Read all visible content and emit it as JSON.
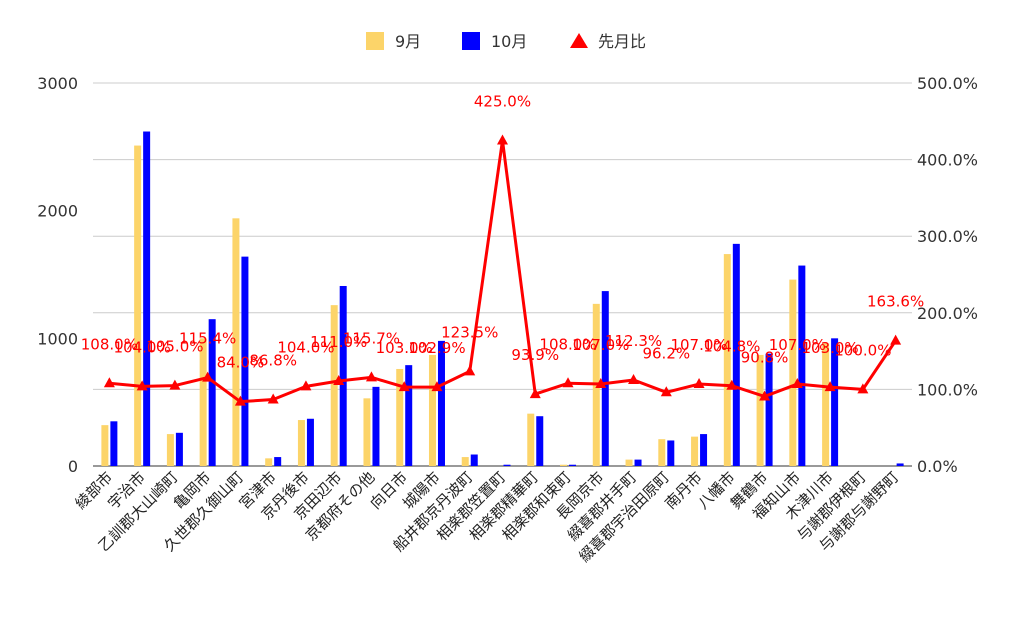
{
  "chart_data": {
    "type": "bar",
    "categories": [
      "綾部市",
      "宇治市",
      "乙訓郡大山崎町",
      "亀岡市",
      "久世郡久御山町",
      "宮津市",
      "京丹後市",
      "京田辺市",
      "京都府その他",
      "向日市",
      "城陽市",
      "船井郡京丹波町",
      "相楽郡笠置町",
      "相楽郡精華町",
      "相楽郡和束町",
      "長岡京市",
      "綴喜郡井手町",
      "綴喜郡宇治田原町",
      "南丹市",
      "八幡市",
      "舞鶴市",
      "福知山市",
      "木津川市",
      "与謝郡伊根町",
      "与謝郡与謝野町"
    ],
    "series": [
      {
        "name": "9月",
        "axis": "left",
        "chart_type": "bar",
        "color": "#fcd469",
        "values": [
          320,
          2510,
          250,
          1000,
          1940,
          60,
          360,
          1260,
          530,
          760,
          870,
          70,
          0,
          410,
          10,
          1270,
          50,
          210,
          230,
          1660,
          870,
          1460,
          960,
          0,
          0
        ]
      },
      {
        "name": "10月",
        "axis": "left",
        "chart_type": "bar",
        "color": "#0000ff",
        "values": [
          350,
          2620,
          260,
          1150,
          1640,
          70,
          370,
          1410,
          620,
          790,
          980,
          90,
          10,
          390,
          10,
          1370,
          50,
          200,
          250,
          1740,
          880,
          1570,
          1000,
          0,
          20
        ]
      },
      {
        "name": "先月比",
        "axis": "right",
        "chart_type": "line",
        "color": "#ff0000",
        "values": [
          108.0,
          104.0,
          105.0,
          115.4,
          84.0,
          86.8,
          104.0,
          111.0,
          115.7,
          103.0,
          102.9,
          123.5,
          425.0,
          93.9,
          108.0,
          107.0,
          112.3,
          96.2,
          107.0,
          104.8,
          90.8,
          107.0,
          103.0,
          100.0,
          163.6
        ],
        "labels": [
          "108.0%",
          "104.0%",
          "105.0%",
          "115.4%",
          "84.0%",
          "86.8%",
          "104.0%",
          "111.0%",
          "115.7%",
          "103.0%",
          "102.9%",
          "123.5%",
          "425.0%",
          "93.9%",
          "108.0%",
          "107.0%",
          "112.3%",
          "96.2%",
          "107.0%",
          "104.8%",
          "90.8%",
          "107.0%",
          "103.0%",
          "100.0%",
          "163.6%"
        ]
      }
    ],
    "y_left": {
      "min": 0,
      "max": 3000,
      "ticks": [
        "0",
        "1000",
        "2000",
        "3000"
      ]
    },
    "y_right": {
      "min": 0,
      "max": 500,
      "ticks": [
        "0.0%",
        "100.0%",
        "200.0%",
        "300.0%",
        "400.0%",
        "500.0%"
      ]
    },
    "legend": {
      "position": "top",
      "entries": [
        "9月",
        "10月",
        "先月比"
      ]
    },
    "grid": true
  }
}
